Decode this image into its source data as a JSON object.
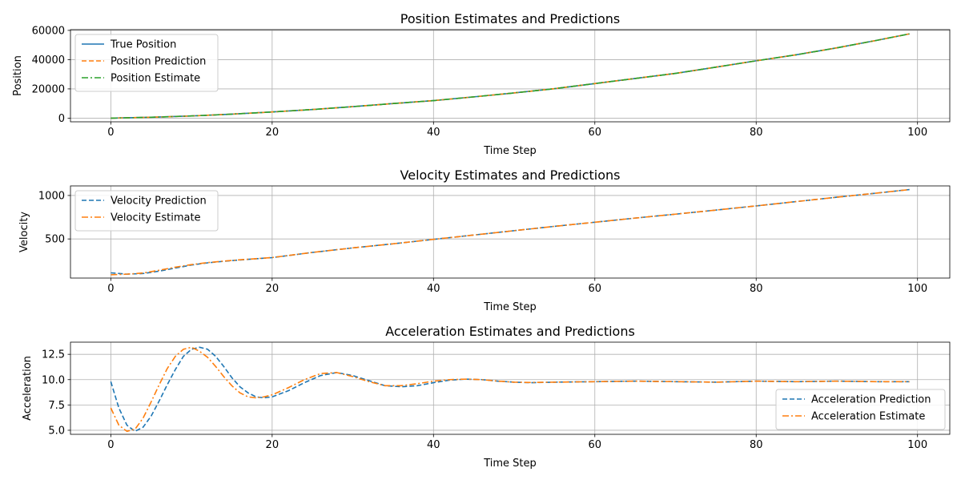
{
  "chart_data": [
    {
      "type": "line",
      "title": "Position Estimates and Predictions",
      "xlabel": "Time Step",
      "ylabel": "Position",
      "xlim": [
        -5,
        104
      ],
      "ylim": [
        -2500,
        60500
      ],
      "xticks": [
        0,
        20,
        40,
        60,
        80,
        100
      ],
      "yticks": [
        0,
        20000,
        40000,
        60000
      ],
      "grid": true,
      "legend_position": "upper left",
      "legend": [
        "True Position",
        "Position Prediction",
        "Position Estimate"
      ],
      "x": [
        0,
        5,
        10,
        15,
        20,
        25,
        30,
        35,
        40,
        45,
        50,
        55,
        60,
        65,
        70,
        75,
        80,
        85,
        90,
        95,
        99
      ],
      "series": [
        {
          "name": "True Position",
          "color": "#1f77b4",
          "dash": "solid",
          "values": [
            0,
            606,
            1490,
            2736,
            4220,
            5900,
            7854,
            9975,
            12000,
            14555,
            17250,
            20144,
            23640,
            27129,
            30590,
            34864,
            39200,
            43350,
            48060,
            53248,
            57620
          ]
        },
        {
          "name": "Position Prediction",
          "color": "#ff7f0e",
          "dash": "dashed",
          "values": [
            0,
            606,
            1490,
            2736,
            4220,
            5900,
            7854,
            9975,
            12000,
            14555,
            17250,
            20144,
            23640,
            27129,
            30590,
            34864,
            39200,
            43350,
            48060,
            53248,
            57620
          ]
        },
        {
          "name": "Position Estimate",
          "color": "#2ca02c",
          "dash": "dashdot",
          "values": [
            0,
            606,
            1490,
            2736,
            4220,
            5900,
            7854,
            9975,
            12000,
            14555,
            17250,
            20144,
            23640,
            27129,
            30590,
            34864,
            39200,
            43350,
            48060,
            53248,
            57620
          ]
        }
      ]
    },
    {
      "type": "line",
      "title": "Velocity Estimates and Predictions",
      "xlabel": "Time Step",
      "ylabel": "Velocity",
      "xlim": [
        -5,
        104
      ],
      "ylim": [
        50,
        1110
      ],
      "xticks": [
        0,
        20,
        40,
        60,
        80,
        100
      ],
      "yticks": [
        500,
        1000
      ],
      "grid": true,
      "legend_position": "upper left",
      "legend": [
        "Velocity Prediction",
        "Velocity Estimate"
      ],
      "x": [
        0,
        2,
        4,
        6,
        8,
        10,
        12,
        14,
        16,
        18,
        20,
        25,
        30,
        35,
        40,
        45,
        50,
        55,
        60,
        65,
        70,
        75,
        80,
        85,
        90,
        95,
        99
      ],
      "series": [
        {
          "name": "Velocity Prediction",
          "color": "#1f77b4",
          "dash": "dashed",
          "values": [
            110,
            95,
            102,
            130,
            165,
            200,
            225,
            243,
            258,
            272,
            285,
            345,
            397,
            444,
            495,
            545,
            595,
            645,
            692,
            740,
            785,
            832,
            880,
            930,
            980,
            1028,
            1068
          ]
        },
        {
          "name": "Velocity Estimate",
          "color": "#ff7f0e",
          "dash": "dashdot",
          "values": [
            88,
            95,
            108,
            140,
            175,
            205,
            228,
            245,
            260,
            273,
            286,
            345,
            397,
            444,
            495,
            545,
            595,
            645,
            692,
            740,
            785,
            832,
            880,
            930,
            980,
            1028,
            1068
          ]
        }
      ]
    },
    {
      "type": "line",
      "title": "Acceleration Estimates and Predictions",
      "xlabel": "Time Step",
      "ylabel": "Acceleration",
      "xlim": [
        -5,
        104
      ],
      "ylim": [
        4.6,
        13.7
      ],
      "xticks": [
        0,
        20,
        40,
        60,
        80,
        100
      ],
      "yticks": [
        5.0,
        7.5,
        10.0,
        12.5
      ],
      "ytick_labels": [
        "5.0",
        "7.5",
        "10.0",
        "12.5"
      ],
      "grid": true,
      "legend_position": "lower right",
      "legend": [
        "Acceleration Prediction",
        "Acceleration Estimate"
      ],
      "x": [
        0,
        1,
        2,
        3,
        4,
        5,
        6,
        7,
        8,
        9,
        10,
        11,
        12,
        13,
        14,
        15,
        16,
        17,
        18,
        19,
        20,
        22,
        24,
        26,
        28,
        30,
        32,
        34,
        36,
        38,
        40,
        42,
        44,
        46,
        48,
        50,
        52,
        55,
        60,
        65,
        70,
        75,
        80,
        85,
        90,
        95,
        99
      ],
      "series": [
        {
          "name": "Acceleration Prediction",
          "color": "#1f77b4",
          "dash": "dashed",
          "values": [
            9.8,
            7.2,
            5.5,
            4.9,
            5.3,
            6.4,
            7.9,
            9.5,
            11.0,
            12.3,
            13.0,
            13.2,
            13.0,
            12.3,
            11.3,
            10.2,
            9.3,
            8.7,
            8.3,
            8.2,
            8.3,
            8.9,
            9.7,
            10.4,
            10.7,
            10.4,
            9.9,
            9.4,
            9.3,
            9.4,
            9.7,
            9.95,
            10.05,
            10.0,
            9.85,
            9.75,
            9.7,
            9.75,
            9.8,
            9.85,
            9.8,
            9.75,
            9.85,
            9.8,
            9.85,
            9.8,
            9.8
          ]
        },
        {
          "name": "Acceleration Estimate",
          "color": "#ff7f0e",
          "dash": "dashdot",
          "values": [
            7.2,
            5.5,
            4.9,
            5.1,
            6.2,
            7.8,
            9.5,
            11.1,
            12.3,
            13.0,
            13.2,
            12.8,
            12.2,
            11.3,
            10.3,
            9.4,
            8.7,
            8.3,
            8.2,
            8.3,
            8.5,
            9.2,
            10.0,
            10.6,
            10.7,
            10.3,
            9.8,
            9.4,
            9.4,
            9.6,
            9.85,
            10.0,
            10.05,
            10.0,
            9.85,
            9.75,
            9.72,
            9.75,
            9.8,
            9.85,
            9.8,
            9.75,
            9.85,
            9.8,
            9.85,
            9.8,
            9.8
          ]
        }
      ]
    }
  ]
}
